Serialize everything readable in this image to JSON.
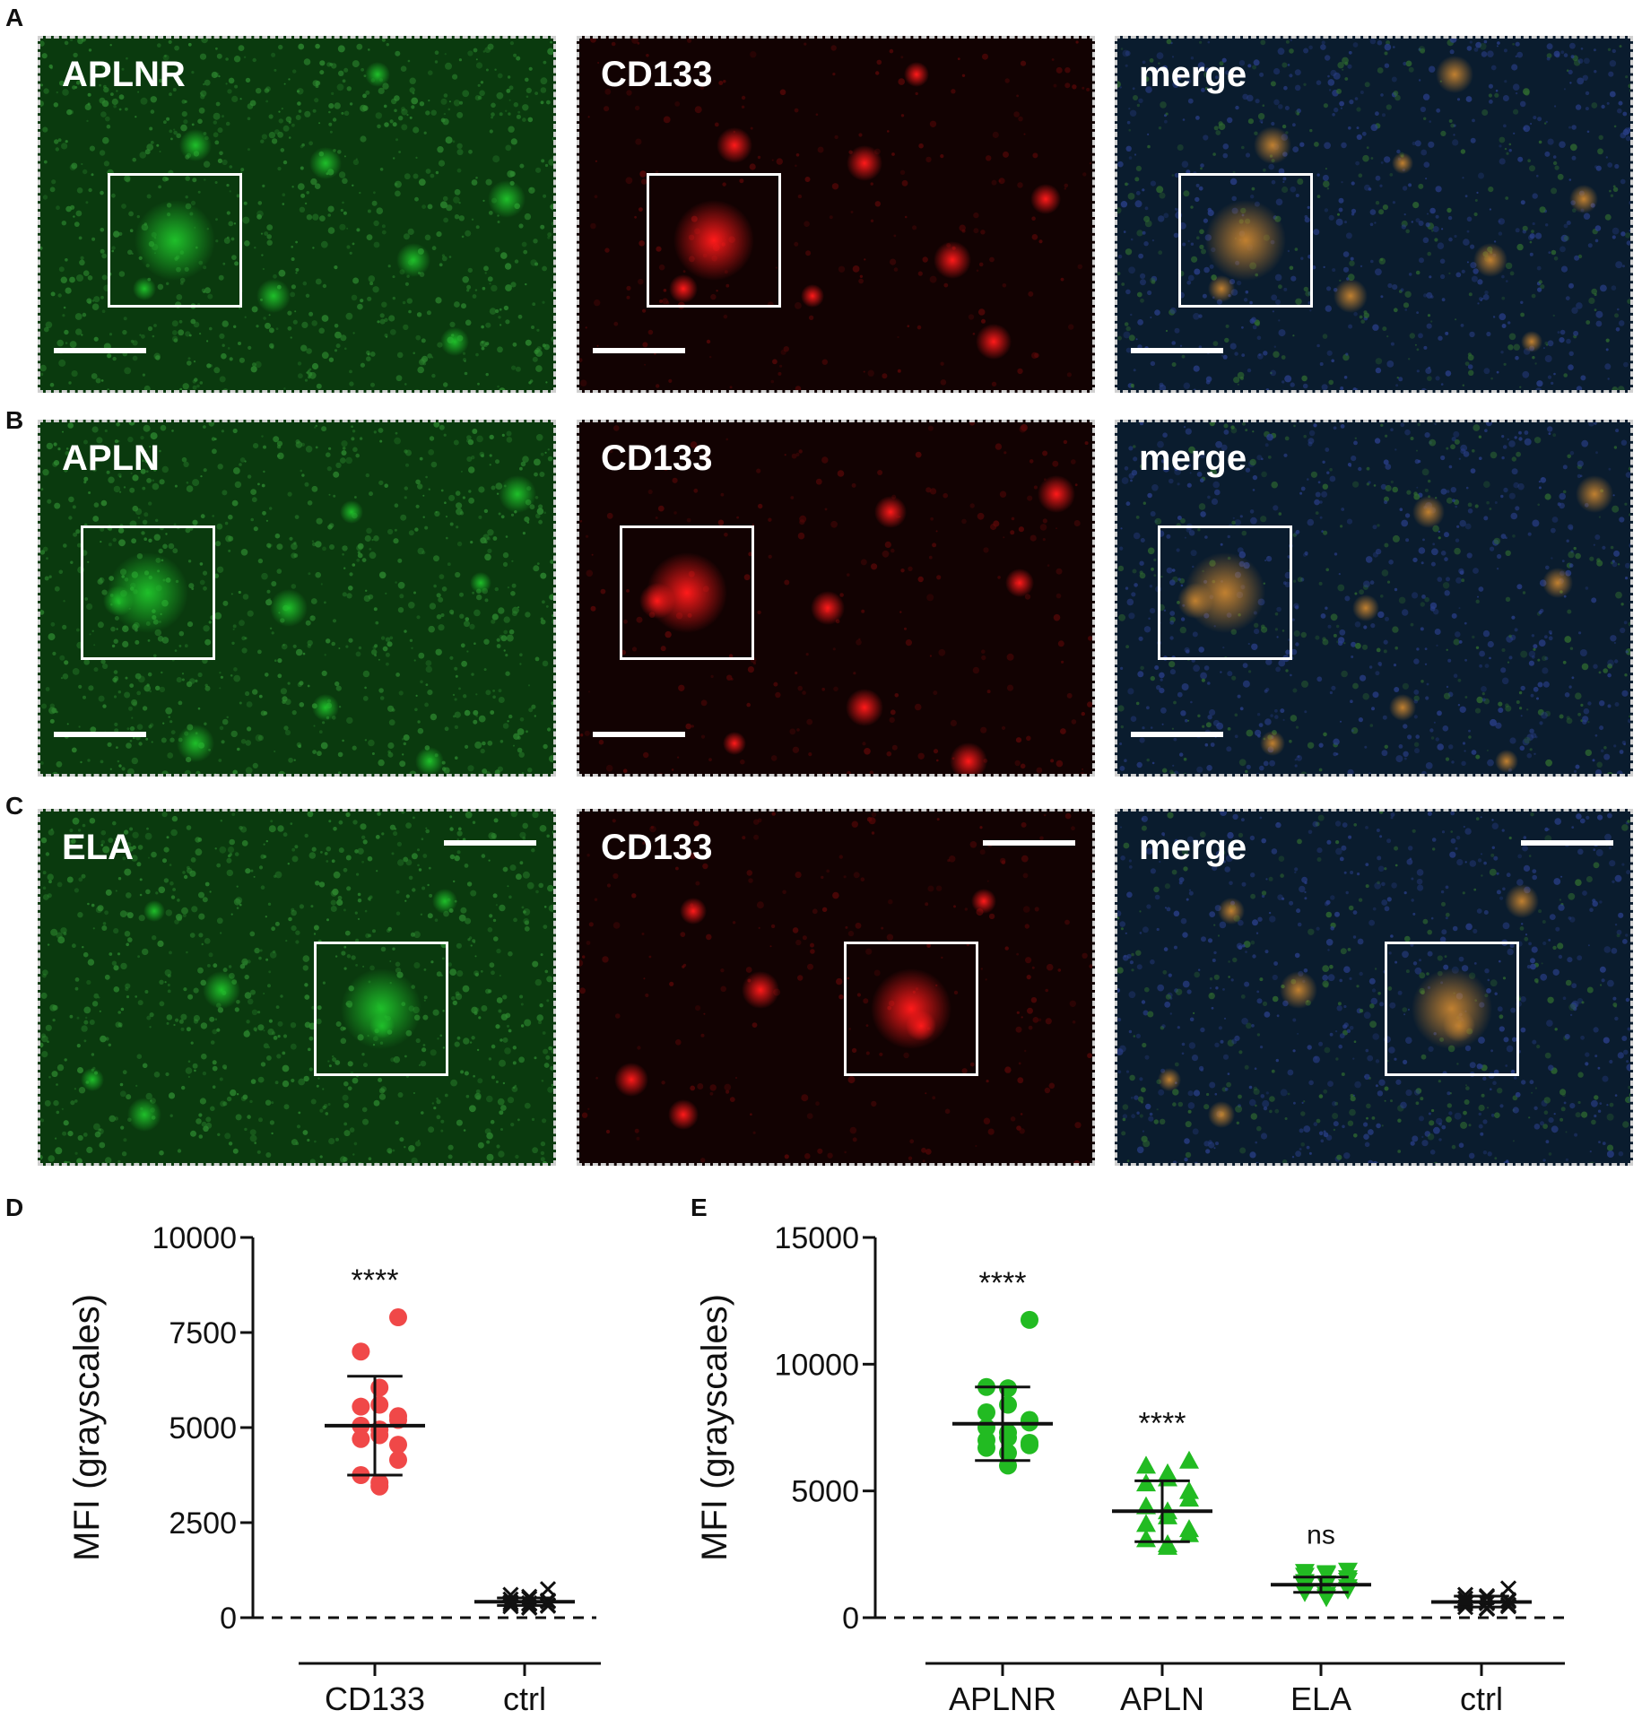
{
  "panel_letters": {
    "a": "A",
    "b": "B",
    "c": "C",
    "d": "D",
    "e": "E"
  },
  "rows": [
    {
      "channels": [
        {
          "label": "APLNR",
          "color": "#1fbf2a"
        },
        {
          "label": "CD133",
          "color": "#ff1a1a"
        },
        {
          "label": "merge",
          "color": "#c08030"
        }
      ]
    },
    {
      "channels": [
        {
          "label": "APLN",
          "color": "#1fbf2a"
        },
        {
          "label": "CD133",
          "color": "#ff1a1a"
        },
        {
          "label": "merge",
          "color": "#c08030"
        }
      ]
    },
    {
      "channels": [
        {
          "label": "ELA",
          "color": "#1fbf2a"
        },
        {
          "label": "CD133",
          "color": "#ff1a1a"
        },
        {
          "label": "merge",
          "color": "#c08030"
        }
      ]
    }
  ],
  "chart_data": [
    {
      "type": "scatter",
      "panel": "D",
      "ylabel": "MFI (grayscales)",
      "xlabel": "",
      "ylim": [
        0,
        10000
      ],
      "yticks": [
        0,
        2500,
        5000,
        7500,
        10000
      ],
      "categories": [
        "CD133",
        "ctrl"
      ],
      "series": [
        {
          "category": "CD133",
          "marker": "circle",
          "color": "#f04848",
          "values": [
            7900,
            7000,
            6050,
            5600,
            5550,
            5300,
            5200,
            5050,
            4950,
            4800,
            4700,
            4550,
            4150,
            3750,
            3550,
            3450
          ],
          "mean": 5050,
          "sd_upper": 6350,
          "sd_lower": 3750,
          "significance": "****"
        },
        {
          "category": "ctrl",
          "marker": "x",
          "color": "#111111",
          "values": [
            750,
            600,
            550,
            500,
            480,
            450,
            430,
            400,
            380,
            360,
            350,
            330,
            310,
            300,
            280,
            260
          ],
          "mean": 420,
          "sd_upper": 520,
          "sd_lower": 320,
          "significance": ""
        }
      ],
      "reference_line": 0
    },
    {
      "type": "scatter",
      "panel": "E",
      "ylabel": "MFI (grayscales)",
      "xlabel": "",
      "ylim": [
        0,
        15000
      ],
      "yticks": [
        0,
        5000,
        10000,
        15000
      ],
      "categories": [
        "APLNR",
        "APLN",
        "ELA",
        "ctrl"
      ],
      "series": [
        {
          "category": "APLNR",
          "marker": "circle",
          "color": "#22bb22",
          "values": [
            11750,
            9100,
            9050,
            8400,
            8100,
            7800,
            7700,
            7500,
            7300,
            7100,
            7000,
            6900,
            6800,
            6700,
            6500,
            6000
          ],
          "mean": 7650,
          "sd_upper": 9100,
          "sd_lower": 6200,
          "significance": "****"
        },
        {
          "category": "APLN",
          "marker": "triangle-up",
          "color": "#22bb22",
          "values": [
            6200,
            6000,
            5700,
            5500,
            5300,
            5000,
            4700,
            4400,
            4200,
            4000,
            3700,
            3500,
            3300,
            3100,
            2900,
            2800
          ],
          "mean": 4200,
          "sd_upper": 5400,
          "sd_lower": 3000,
          "significance": "****"
        },
        {
          "category": "ELA",
          "marker": "triangle-down",
          "color": "#22bb22",
          "values": [
            1850,
            1800,
            1750,
            1700,
            1650,
            1550,
            1450,
            1400,
            1350,
            1300,
            1250,
            1200,
            1100,
            1000,
            900,
            800
          ],
          "mean": 1300,
          "sd_upper": 1600,
          "sd_lower": 1000,
          "significance": "ns"
        },
        {
          "category": "ctrl",
          "marker": "x",
          "color": "#111111",
          "values": [
            1150,
            900,
            850,
            800,
            750,
            700,
            650,
            620,
            600,
            570,
            550,
            500,
            450,
            420,
            380,
            350
          ],
          "mean": 620,
          "sd_upper": 850,
          "sd_lower": 420,
          "significance": ""
        }
      ],
      "reference_line": 0
    }
  ]
}
